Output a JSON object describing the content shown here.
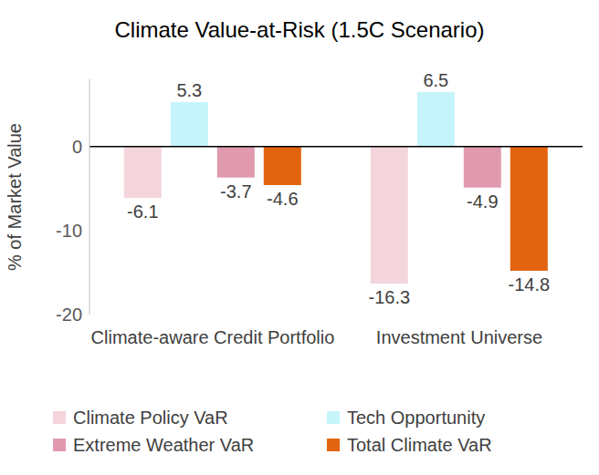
{
  "chart_data": {
    "type": "bar",
    "title": "Climate Value-at-Risk (1.5C Scenario)",
    "y_label": "% of Market Value",
    "categories": [
      "Climate-aware Credit Portfolio",
      "Investment Universe"
    ],
    "series": [
      {
        "name": "Climate Policy VaR",
        "color": "#f4d5db",
        "values": [
          -6.1,
          -16.3
        ]
      },
      {
        "name": "Tech Opportunity",
        "color": "#c5f5fb",
        "values": [
          5.3,
          6.5
        ]
      },
      {
        "name": "Extreme Weather VaR",
        "color": "#e09aae",
        "values": [
          -3.7,
          -4.9
        ]
      },
      {
        "name": "Total Climate VaR",
        "color": "#e2640e",
        "values": [
          -4.6,
          -14.8
        ]
      }
    ],
    "ylim": [
      -20,
      8
    ],
    "yticks": [
      -20,
      -10,
      0
    ],
    "grid": false,
    "legend": "bottom",
    "data_labels": true
  }
}
